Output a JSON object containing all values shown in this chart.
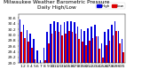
{
  "title": "Milwaukee Weather Barometric Pressure",
  "subtitle": "Daily High/Low",
  "blue_color": "#0000dd",
  "red_color": "#dd0000",
  "background_color": "#ffffff",
  "ylim": [
    29.0,
    30.75
  ],
  "yticks": [
    29.0,
    29.2,
    29.4,
    29.6,
    29.8,
    30.0,
    30.2,
    30.4,
    30.6
  ],
  "high_values": [
    30.55,
    30.35,
    30.18,
    30.05,
    29.85,
    29.45,
    29.1,
    29.55,
    30.1,
    30.4,
    30.5,
    30.45,
    30.35,
    30.45,
    30.5,
    30.48,
    30.45,
    30.3,
    30.2,
    30.15,
    30.25,
    30.3,
    30.35,
    29.95,
    29.7,
    30.1,
    30.2,
    30.35,
    30.5,
    30.15,
    29.85
  ],
  "low_values": [
    30.1,
    29.9,
    29.75,
    29.55,
    29.15,
    28.95,
    28.75,
    29.1,
    29.7,
    30.05,
    30.15,
    30.1,
    30.0,
    30.05,
    30.15,
    30.1,
    30.05,
    29.85,
    29.75,
    29.65,
    29.8,
    29.9,
    29.95,
    29.5,
    29.2,
    29.65,
    29.8,
    30.0,
    30.15,
    29.7,
    29.4
  ],
  "xlabels": [
    "1",
    "2",
    "3",
    "4",
    "5",
    "6",
    "7",
    "8",
    "9",
    "10",
    "11",
    "12",
    "13",
    "14",
    "15",
    "16",
    "17",
    "18",
    "19",
    "20",
    "21",
    "22",
    "23",
    "24",
    "25",
    "26",
    "27",
    "28",
    "29",
    "30",
    "31"
  ],
  "tick_fontsize": 3.2,
  "title_fontsize": 4.2,
  "legend_high": "High",
  "legend_low": "Low",
  "bar_width": 0.42
}
